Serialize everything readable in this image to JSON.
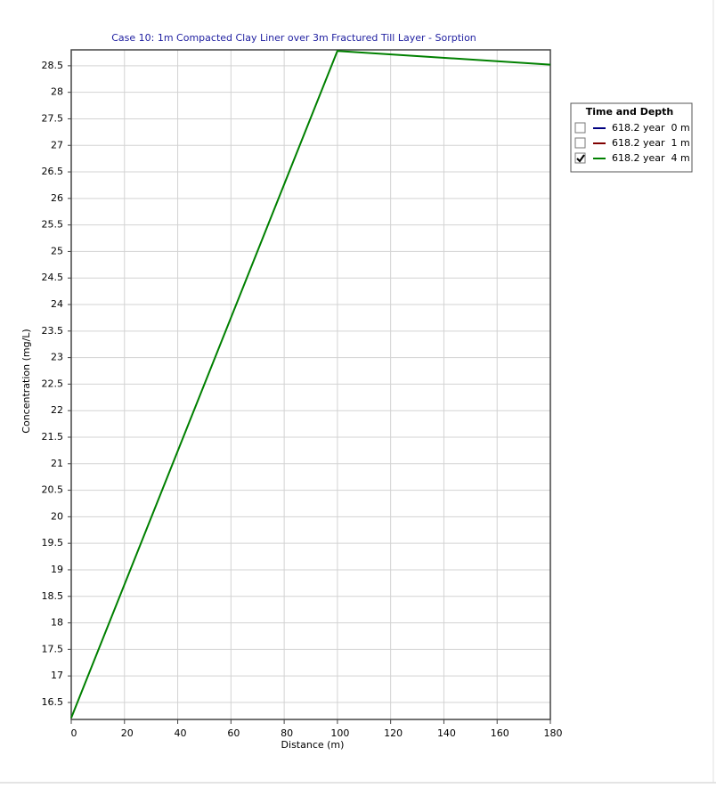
{
  "chart_data": {
    "type": "line",
    "title": "Case 10: 1m Compacted Clay Liner over 3m Fractured Till Layer - Sorption",
    "x_label": "Distance (m)",
    "y_label": "Concentration (mg/L)",
    "legend_title": "Time and Depth",
    "legend_position": "right",
    "grid": true,
    "x": [
      0,
      100,
      180
    ],
    "series": [
      {
        "name": "618.2 year  0 m",
        "color": "#000080",
        "checked": false,
        "values": [
          null,
          null,
          null
        ]
      },
      {
        "name": "618.2 year  1 m",
        "color": "#800000",
        "checked": false,
        "values": [
          null,
          null,
          null
        ]
      },
      {
        "name": "618.2 year  4 m",
        "color": "#008000",
        "checked": true,
        "values": [
          16.21,
          28.78,
          28.52
        ]
      }
    ],
    "xlim": [
      0,
      180
    ],
    "xticks": [
      0,
      20,
      40,
      60,
      80,
      100,
      120,
      140,
      160,
      180
    ],
    "ylim": [
      16.18,
      28.8
    ],
    "yticks": [
      16.5,
      17,
      17.5,
      18,
      18.5,
      19,
      19.5,
      20,
      20.5,
      21,
      21.5,
      22,
      22.5,
      23,
      23.5,
      24,
      24.5,
      25,
      25.5,
      26,
      26.5,
      27,
      27.5,
      28,
      28.5
    ]
  }
}
